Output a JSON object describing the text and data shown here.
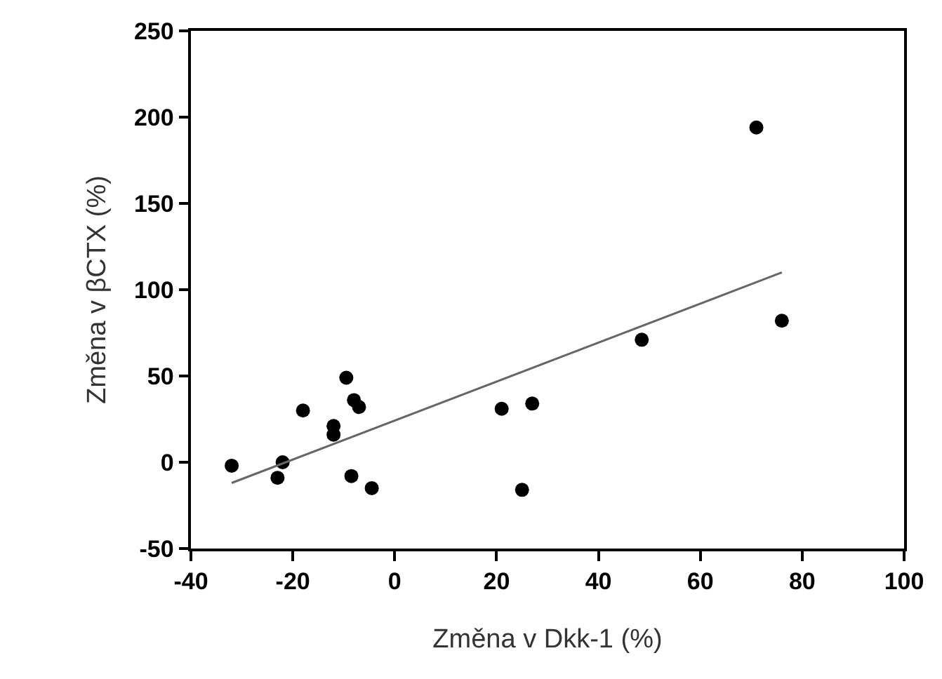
{
  "chart_data": {
    "type": "scatter",
    "xlabel": "Změna v Dkk-1 (%)",
    "ylabel": "Změna v βCTX (%)",
    "xlim": [
      -40,
      100
    ],
    "xticks": [
      -40,
      -20,
      0,
      20,
      40,
      60,
      80,
      100
    ],
    "ylim": [
      -50,
      250
    ],
    "yticks": [
      -50,
      0,
      50,
      100,
      150,
      200,
      250
    ],
    "marker": "circle",
    "series": [
      {
        "color": "#000000",
        "x": [
          -32,
          -22,
          -23,
          -18,
          -9.5,
          -12,
          -12,
          -8,
          -7,
          -8.5,
          -4.5,
          71,
          76,
          48.5,
          21,
          27,
          25
        ],
        "values": [
          -2,
          0,
          -9,
          30,
          49,
          21,
          16,
          36,
          32,
          -8,
          -15,
          194,
          82,
          71,
          31,
          34,
          -16
        ]
      },
      {
        "type": "line",
        "color": "#666666",
        "marker": "none",
        "x": [
          -32,
          76
        ],
        "values": [
          -12,
          110
        ]
      }
    ]
  }
}
